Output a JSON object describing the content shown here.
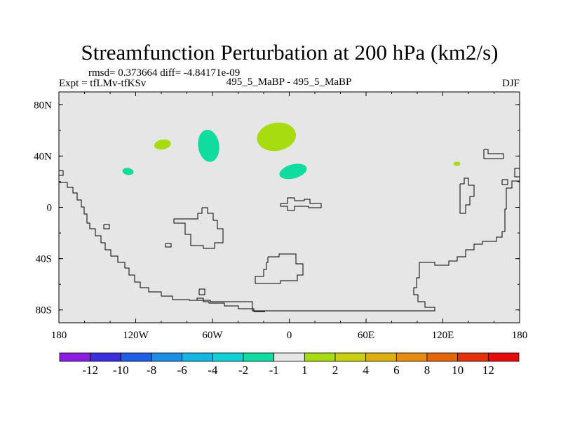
{
  "chart_data": {
    "type": "contour-map",
    "title": "Streamfunction Perturbation at 200 hPa (km2/s)",
    "stats_line": "rmsd= 0.373664 diff= -4.84171e-09",
    "left_label": "Expt = tfLMv-tfKSv",
    "center_label": "495_5_MaBP - 495_5_MaBP",
    "right_label": "DJF",
    "lon_range": [
      -180,
      180
    ],
    "lat_range": [
      -90,
      90
    ],
    "x_ticks": [
      {
        "value": -180,
        "label": "180"
      },
      {
        "value": -120,
        "label": "120W"
      },
      {
        "value": -60,
        "label": "60W"
      },
      {
        "value": 0,
        "label": "0"
      },
      {
        "value": 60,
        "label": "60E"
      },
      {
        "value": 120,
        "label": "120E"
      },
      {
        "value": 180,
        "label": "180"
      }
    ],
    "y_ticks": [
      {
        "value": 80,
        "label": "80N"
      },
      {
        "value": 40,
        "label": "40N"
      },
      {
        "value": 0,
        "label": "0"
      },
      {
        "value": -40,
        "label": "40S"
      },
      {
        "value": -80,
        "label": "80S"
      }
    ],
    "background_color": "#e6e6e6",
    "colorbar": {
      "colors": [
        "#8a1ce4",
        "#3b2ee0",
        "#1f5ee6",
        "#1b8fe6",
        "#14b6e3",
        "#10d2d6",
        "#10dca0",
        "#e6e6e6",
        "#a6dc10",
        "#c8d010",
        "#dcb010",
        "#e68c10",
        "#e6640a",
        "#e6320a",
        "#e60a0a"
      ],
      "labels": [
        "-12",
        "-10",
        "-8",
        "-6",
        "-4",
        "-2",
        "-1",
        "1",
        "2",
        "4",
        "6",
        "8",
        "10",
        "12"
      ]
    },
    "anomalies": [
      {
        "lon": -99,
        "lat": 49,
        "category": "1 to 2",
        "color": "#a6dc10"
      },
      {
        "lon": -126,
        "lat": 28,
        "category": "-2 to -1",
        "color": "#10dca0"
      },
      {
        "lon": -63,
        "lat": 48,
        "category": "-2 to -1",
        "color": "#10dca0"
      },
      {
        "lon": -10,
        "lat": 55,
        "category": "1 to 2",
        "color": "#a6dc10"
      },
      {
        "lon": 3,
        "lat": 28,
        "category": "-2 to -1",
        "color": "#10dca0"
      },
      {
        "lon": 131,
        "lat": 34,
        "category": "1 to 2",
        "color": "#a6dc10"
      }
    ]
  }
}
